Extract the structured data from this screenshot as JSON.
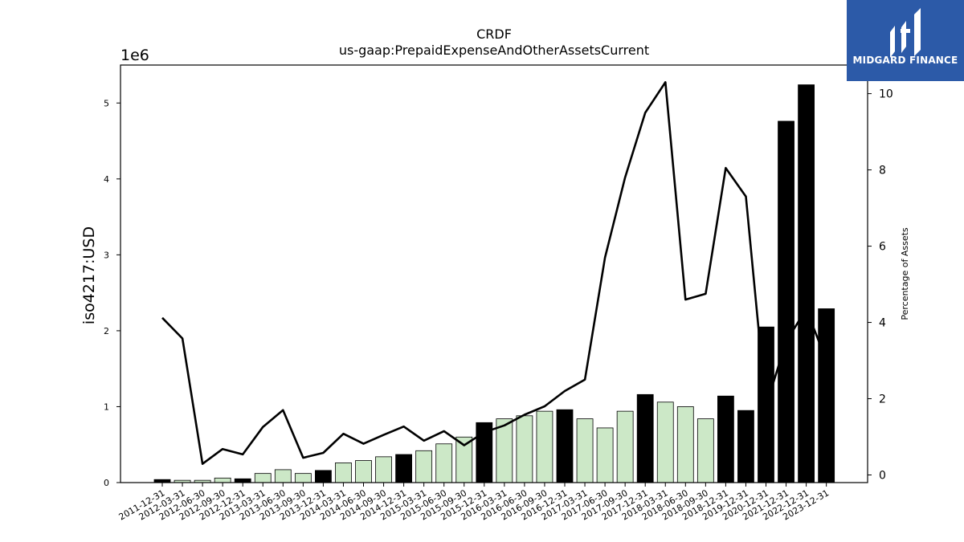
{
  "chart_data": {
    "type": "bar",
    "title": "CRDF",
    "subtitle": "us-gaap:PrepaidExpenseAndOtherAssetsCurrent",
    "ylabel": "iso4217:USD",
    "y2label": "Percentage of Assets",
    "y_offset_label": "1e6",
    "ylim": [
      0,
      5.5
    ],
    "y2lim": [
      -0.2,
      10.75
    ],
    "y_ticks": [
      "0",
      "1",
      "2",
      "3",
      "4",
      "5"
    ],
    "y2_ticks": [
      "0",
      "2",
      "4",
      "6",
      "8",
      "10"
    ],
    "categories": [
      "2011-12-31",
      "2012-03-31",
      "2012-06-30",
      "2012-09-30",
      "2012-12-31",
      "2013-03-31",
      "2013-06-30",
      "2013-09-30",
      "2013-12-31",
      "2014-03-31",
      "2014-06-30",
      "2014-09-30",
      "2014-12-31",
      "2015-03-31",
      "2015-06-30",
      "2015-09-30",
      "2015-12-31",
      "2016-03-31",
      "2016-06-30",
      "2016-09-30",
      "2016-12-31",
      "2017-03-31",
      "2017-06-30",
      "2017-09-30",
      "2017-12-31",
      "2018-03-31",
      "2018-06-30",
      "2018-09-30",
      "2018-12-31",
      "2019-12-31",
      "2020-12-31",
      "2021-12-31",
      "2022-12-31",
      "2023-12-31"
    ],
    "series": [
      {
        "kind": "bar",
        "values": [
          0.04,
          0.03,
          0.03,
          0.06,
          0.05,
          0.12,
          0.17,
          0.12,
          0.16,
          0.26,
          0.29,
          0.34,
          0.37,
          0.42,
          0.51,
          0.6,
          0.79,
          0.84,
          0.88,
          0.94,
          0.96,
          0.84,
          0.72,
          0.94,
          1.16,
          1.06,
          1.0,
          0.84,
          1.14,
          0.95,
          2.05,
          4.76,
          5.24,
          2.29
        ],
        "highlight": [
          true,
          false,
          false,
          false,
          true,
          false,
          false,
          false,
          true,
          false,
          false,
          false,
          true,
          false,
          false,
          false,
          true,
          false,
          false,
          false,
          true,
          false,
          false,
          false,
          true,
          false,
          false,
          false,
          true,
          true,
          true,
          true,
          true,
          true
        ]
      },
      {
        "kind": "line",
        "axis": "right",
        "values": [
          4.12,
          3.58,
          0.29,
          0.68,
          0.54,
          1.26,
          1.7,
          0.45,
          0.58,
          1.08,
          0.82,
          1.05,
          1.27,
          0.9,
          1.15,
          0.78,
          1.12,
          1.3,
          1.58,
          1.8,
          2.2,
          2.5,
          5.7,
          7.8,
          9.5,
          10.3,
          4.6,
          4.75,
          8.05,
          7.3,
          1.8,
          3.5,
          4.35,
          3.0
        ]
      }
    ],
    "colors": {
      "bar_highlight": "#000000",
      "bar_normal": "#cce8c7",
      "line": "#000000"
    },
    "grid": false
  },
  "logo": {
    "text": "MIDGARD FINANCE",
    "bg_color": "#2c5aa8"
  }
}
